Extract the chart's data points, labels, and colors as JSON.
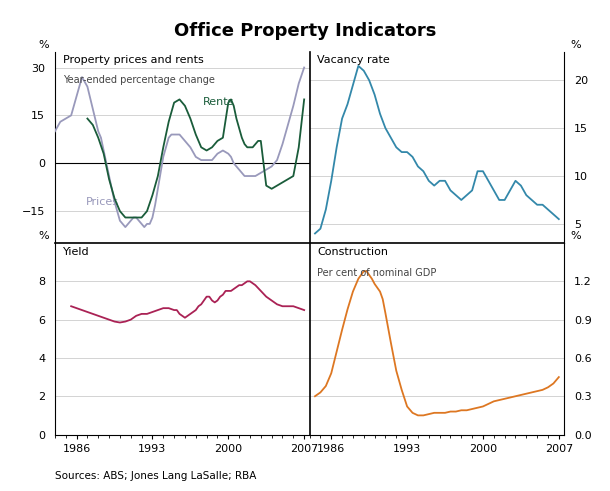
{
  "title": "Office Property Indicators",
  "source": "Sources: ABS; Jones Lang LaSalle; RBA",
  "bg": "#ffffff",
  "tl_title": "Property prices and rents",
  "tl_subtitle": "Year-ended percentage change",
  "tr_title": "Vacancy rate",
  "bl_title": "Yield",
  "br_title": "Construction",
  "br_subtitle": "Per cent of nominal GDP",
  "prices_color": "#9999bb",
  "rents_color": "#1a5c3a",
  "vacancy_color": "#3388aa",
  "yield_color": "#aa2255",
  "construction_color": "#dd7722",
  "prices_x": [
    1984.0,
    1984.5,
    1985.0,
    1985.5,
    1986.0,
    1986.5,
    1987.0,
    1987.5,
    1988.0,
    1988.25,
    1988.5,
    1988.75,
    1989.0,
    1989.25,
    1989.5,
    1989.75,
    1990.0,
    1990.25,
    1990.5,
    1990.75,
    1991.0,
    1991.25,
    1991.5,
    1991.75,
    1992.0,
    1992.25,
    1992.5,
    1992.75,
    1993.0,
    1993.25,
    1993.5,
    1993.75,
    1994.0,
    1994.25,
    1994.5,
    1994.75,
    1995.0,
    1995.25,
    1995.5,
    1995.75,
    1996.0,
    1996.5,
    1997.0,
    1997.5,
    1998.0,
    1998.5,
    1999.0,
    1999.5,
    2000.0,
    2000.25,
    2000.5,
    2000.75,
    2001.0,
    2001.25,
    2001.5,
    2001.75,
    2002.0,
    2002.5,
    2003.0,
    2003.5,
    2004.0,
    2004.5,
    2005.0,
    2005.5,
    2006.0,
    2006.5,
    2007.0
  ],
  "prices_y": [
    10,
    13,
    14,
    15,
    21,
    27,
    24,
    17,
    10,
    8,
    4,
    0,
    -4,
    -8,
    -12,
    -15,
    -18,
    -19,
    -20,
    -19,
    -18,
    -17,
    -17,
    -18,
    -19,
    -20,
    -19,
    -19,
    -17,
    -13,
    -8,
    -3,
    2,
    5,
    8,
    9,
    9,
    9,
    9,
    8,
    7,
    5,
    2,
    1,
    1,
    1,
    3,
    4,
    3,
    2,
    0,
    -1,
    -2,
    -3,
    -4,
    -4,
    -4,
    -4,
    -3,
    -2,
    -1,
    1,
    6,
    12,
    18,
    25,
    30
  ],
  "rents_x": [
    1987.0,
    1987.5,
    1988.0,
    1988.5,
    1989.0,
    1989.5,
    1990.0,
    1990.5,
    1991.0,
    1991.5,
    1992.0,
    1992.5,
    1993.0,
    1993.5,
    1994.0,
    1994.5,
    1995.0,
    1995.5,
    1996.0,
    1996.5,
    1997.0,
    1997.5,
    1998.0,
    1998.5,
    1999.0,
    1999.5,
    2000.0,
    2000.25,
    2000.5,
    2000.75,
    2001.0,
    2001.25,
    2001.5,
    2001.75,
    2002.0,
    2002.25,
    2002.5,
    2002.75,
    2003.0,
    2003.5,
    2004.0,
    2004.5,
    2005.0,
    2005.5,
    2006.0,
    2006.5,
    2007.0
  ],
  "rents_y": [
    14,
    12,
    8,
    3,
    -5,
    -11,
    -15,
    -17,
    -17,
    -17,
    -17,
    -15,
    -10,
    -4,
    5,
    13,
    19,
    20,
    18,
    14,
    9,
    5,
    4,
    5,
    7,
    8,
    19,
    20,
    18,
    14,
    11,
    8,
    6,
    5,
    5,
    5,
    6,
    7,
    7,
    -7,
    -8,
    -7,
    -6,
    -5,
    -4,
    5,
    20
  ],
  "vacancy_x": [
    1984.5,
    1985.0,
    1985.5,
    1986.0,
    1986.5,
    1987.0,
    1987.5,
    1988.0,
    1988.5,
    1989.0,
    1989.5,
    1990.0,
    1990.5,
    1991.0,
    1991.5,
    1992.0,
    1992.5,
    1993.0,
    1993.5,
    1994.0,
    1994.5,
    1995.0,
    1995.5,
    1996.0,
    1996.5,
    1997.0,
    1997.5,
    1998.0,
    1998.5,
    1999.0,
    1999.5,
    2000.0,
    2000.5,
    2001.0,
    2001.5,
    2002.0,
    2002.5,
    2003.0,
    2003.5,
    2004.0,
    2004.5,
    2005.0,
    2005.5,
    2006.0,
    2006.5,
    2007.0
  ],
  "vacancy_y": [
    4.0,
    4.5,
    6.5,
    9.5,
    13.0,
    16.0,
    17.5,
    19.5,
    21.5,
    21.0,
    20.0,
    18.5,
    16.5,
    15.0,
    14.0,
    13.0,
    12.5,
    12.5,
    12.0,
    11.0,
    10.5,
    9.5,
    9.0,
    9.5,
    9.5,
    8.5,
    8.0,
    7.5,
    8.0,
    8.5,
    10.5,
    10.5,
    9.5,
    8.5,
    7.5,
    7.5,
    8.5,
    9.5,
    9.0,
    8.0,
    7.5,
    7.0,
    7.0,
    6.5,
    6.0,
    5.5
  ],
  "yield_x": [
    1985.5,
    1986.0,
    1986.5,
    1987.0,
    1987.5,
    1988.0,
    1988.5,
    1989.0,
    1989.5,
    1990.0,
    1990.5,
    1991.0,
    1991.5,
    1992.0,
    1992.5,
    1993.0,
    1993.5,
    1994.0,
    1994.5,
    1995.0,
    1995.25,
    1995.5,
    1995.75,
    1996.0,
    1996.25,
    1996.5,
    1996.75,
    1997.0,
    1997.25,
    1997.5,
    1997.75,
    1998.0,
    1998.25,
    1998.5,
    1998.75,
    1999.0,
    1999.25,
    1999.5,
    1999.75,
    2000.0,
    2000.25,
    2000.5,
    2000.75,
    2001.0,
    2001.25,
    2001.5,
    2001.75,
    2002.0,
    2002.5,
    2003.0,
    2003.5,
    2004.0,
    2004.5,
    2005.0,
    2005.5,
    2006.0,
    2006.5,
    2007.0
  ],
  "yield_y": [
    6.7,
    6.6,
    6.5,
    6.4,
    6.3,
    6.2,
    6.1,
    6.0,
    5.9,
    5.85,
    5.9,
    6.0,
    6.2,
    6.3,
    6.3,
    6.4,
    6.5,
    6.6,
    6.6,
    6.5,
    6.5,
    6.3,
    6.2,
    6.1,
    6.2,
    6.3,
    6.4,
    6.5,
    6.7,
    6.8,
    7.0,
    7.2,
    7.2,
    7.0,
    6.9,
    7.0,
    7.2,
    7.3,
    7.5,
    7.5,
    7.5,
    7.6,
    7.7,
    7.8,
    7.8,
    7.9,
    8.0,
    8.0,
    7.8,
    7.5,
    7.2,
    7.0,
    6.8,
    6.7,
    6.7,
    6.7,
    6.6,
    6.5
  ],
  "construction_x": [
    1984.5,
    1985.0,
    1985.5,
    1986.0,
    1986.5,
    1987.0,
    1987.5,
    1988.0,
    1988.5,
    1989.0,
    1989.25,
    1989.5,
    1989.75,
    1990.0,
    1990.25,
    1990.5,
    1990.75,
    1991.0,
    1991.5,
    1992.0,
    1992.5,
    1993.0,
    1993.5,
    1994.0,
    1994.5,
    1995.0,
    1995.5,
    1996.0,
    1996.5,
    1997.0,
    1997.5,
    1998.0,
    1998.5,
    1999.0,
    1999.5,
    2000.0,
    2000.5,
    2001.0,
    2001.5,
    2002.0,
    2002.5,
    2003.0,
    2003.5,
    2004.0,
    2004.5,
    2005.0,
    2005.5,
    2006.0,
    2006.5,
    2007.0
  ],
  "construction_y": [
    0.3,
    0.33,
    0.38,
    0.48,
    0.65,
    0.82,
    0.98,
    1.12,
    1.22,
    1.28,
    1.28,
    1.25,
    1.22,
    1.18,
    1.15,
    1.12,
    1.06,
    0.95,
    0.72,
    0.5,
    0.35,
    0.22,
    0.17,
    0.15,
    0.15,
    0.16,
    0.17,
    0.17,
    0.17,
    0.18,
    0.18,
    0.19,
    0.19,
    0.2,
    0.21,
    0.22,
    0.24,
    0.26,
    0.27,
    0.28,
    0.29,
    0.3,
    0.31,
    0.32,
    0.33,
    0.34,
    0.35,
    0.37,
    0.4,
    0.45
  ],
  "xlim": [
    1984.0,
    2007.5
  ],
  "xticks": [
    1986,
    1993,
    2000,
    2007
  ],
  "tl_ylim": [
    -25,
    35
  ],
  "tl_yticks": [
    -15,
    0,
    15,
    30
  ],
  "tr_ylim": [
    3,
    23
  ],
  "tr_yticks": [
    5,
    10,
    15,
    20
  ],
  "bl_ylim": [
    0,
    10
  ],
  "bl_yticks": [
    0,
    2,
    4,
    6,
    8
  ],
  "br_ylim": [
    0.0,
    1.5
  ],
  "br_yticks": [
    0.0,
    0.3,
    0.6,
    0.9,
    1.2
  ],
  "br_ytick_labels": [
    "0.0",
    "0.3",
    "0.6",
    "0.9",
    "1.2"
  ]
}
